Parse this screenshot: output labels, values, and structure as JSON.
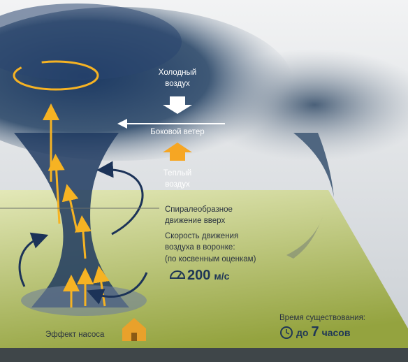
{
  "labels": {
    "cold_air": [
      "Холодный",
      "воздух"
    ],
    "side_wind": "Боковой ветер",
    "warm_air": [
      "Теплый",
      "воздух"
    ],
    "spiral": [
      "Спиралеобразное",
      "движение вверх"
    ],
    "speed_caption": [
      "Скорость движения",
      "воздуха в воронке:",
      "(по косвенным оценкам)"
    ],
    "speed": {
      "value": "200",
      "unit": "м/с"
    },
    "pump": "Эффект насоса",
    "lifetime_caption": "Время существования:",
    "lifetime": {
      "prefix": "до",
      "value": "7",
      "unit": "часов"
    }
  }
}
